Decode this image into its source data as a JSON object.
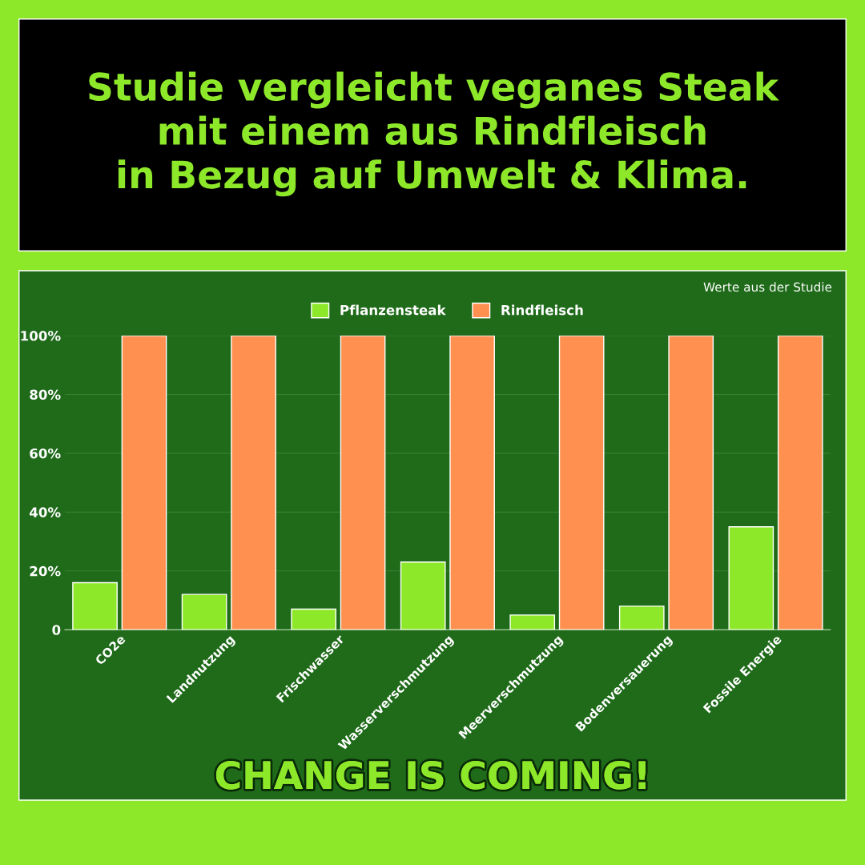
{
  "chart_data": {
    "type": "bar",
    "title": "Studie vergleicht veganes Steak\nmit einem aus Rindfleisch\nin Bezug auf Umwelt & Klima.",
    "categories": [
      "CO2e",
      "Landnutzung",
      "Frischwasser",
      "Wasserverschmutzung",
      "Meerverschmutzung",
      "Bodenversauerung",
      "Fossile Energie"
    ],
    "series": [
      {
        "name": "Pflanzensteak",
        "color": "#8ee82a",
        "values": [
          16,
          12,
          7,
          23,
          5,
          8,
          35
        ]
      },
      {
        "name": "Rindfleisch",
        "color": "#ff904f",
        "values": [
          100,
          100,
          100,
          100,
          100,
          100,
          100
        ]
      }
    ],
    "ylim": [
      0,
      100
    ],
    "yticks": [
      0,
      {
        "value": 20,
        "label": "20%"
      },
      {
        "value": 40,
        "label": "40%"
      },
      {
        "value": 60,
        "label": "60%"
      },
      {
        "value": 80,
        "label": "80%"
      },
      {
        "value": 100,
        "label": "100%"
      }
    ],
    "grid": "y",
    "legend": "top",
    "annotations": [
      "Werte aus der Studie",
      "CHANGE IS COMING!"
    ]
  }
}
